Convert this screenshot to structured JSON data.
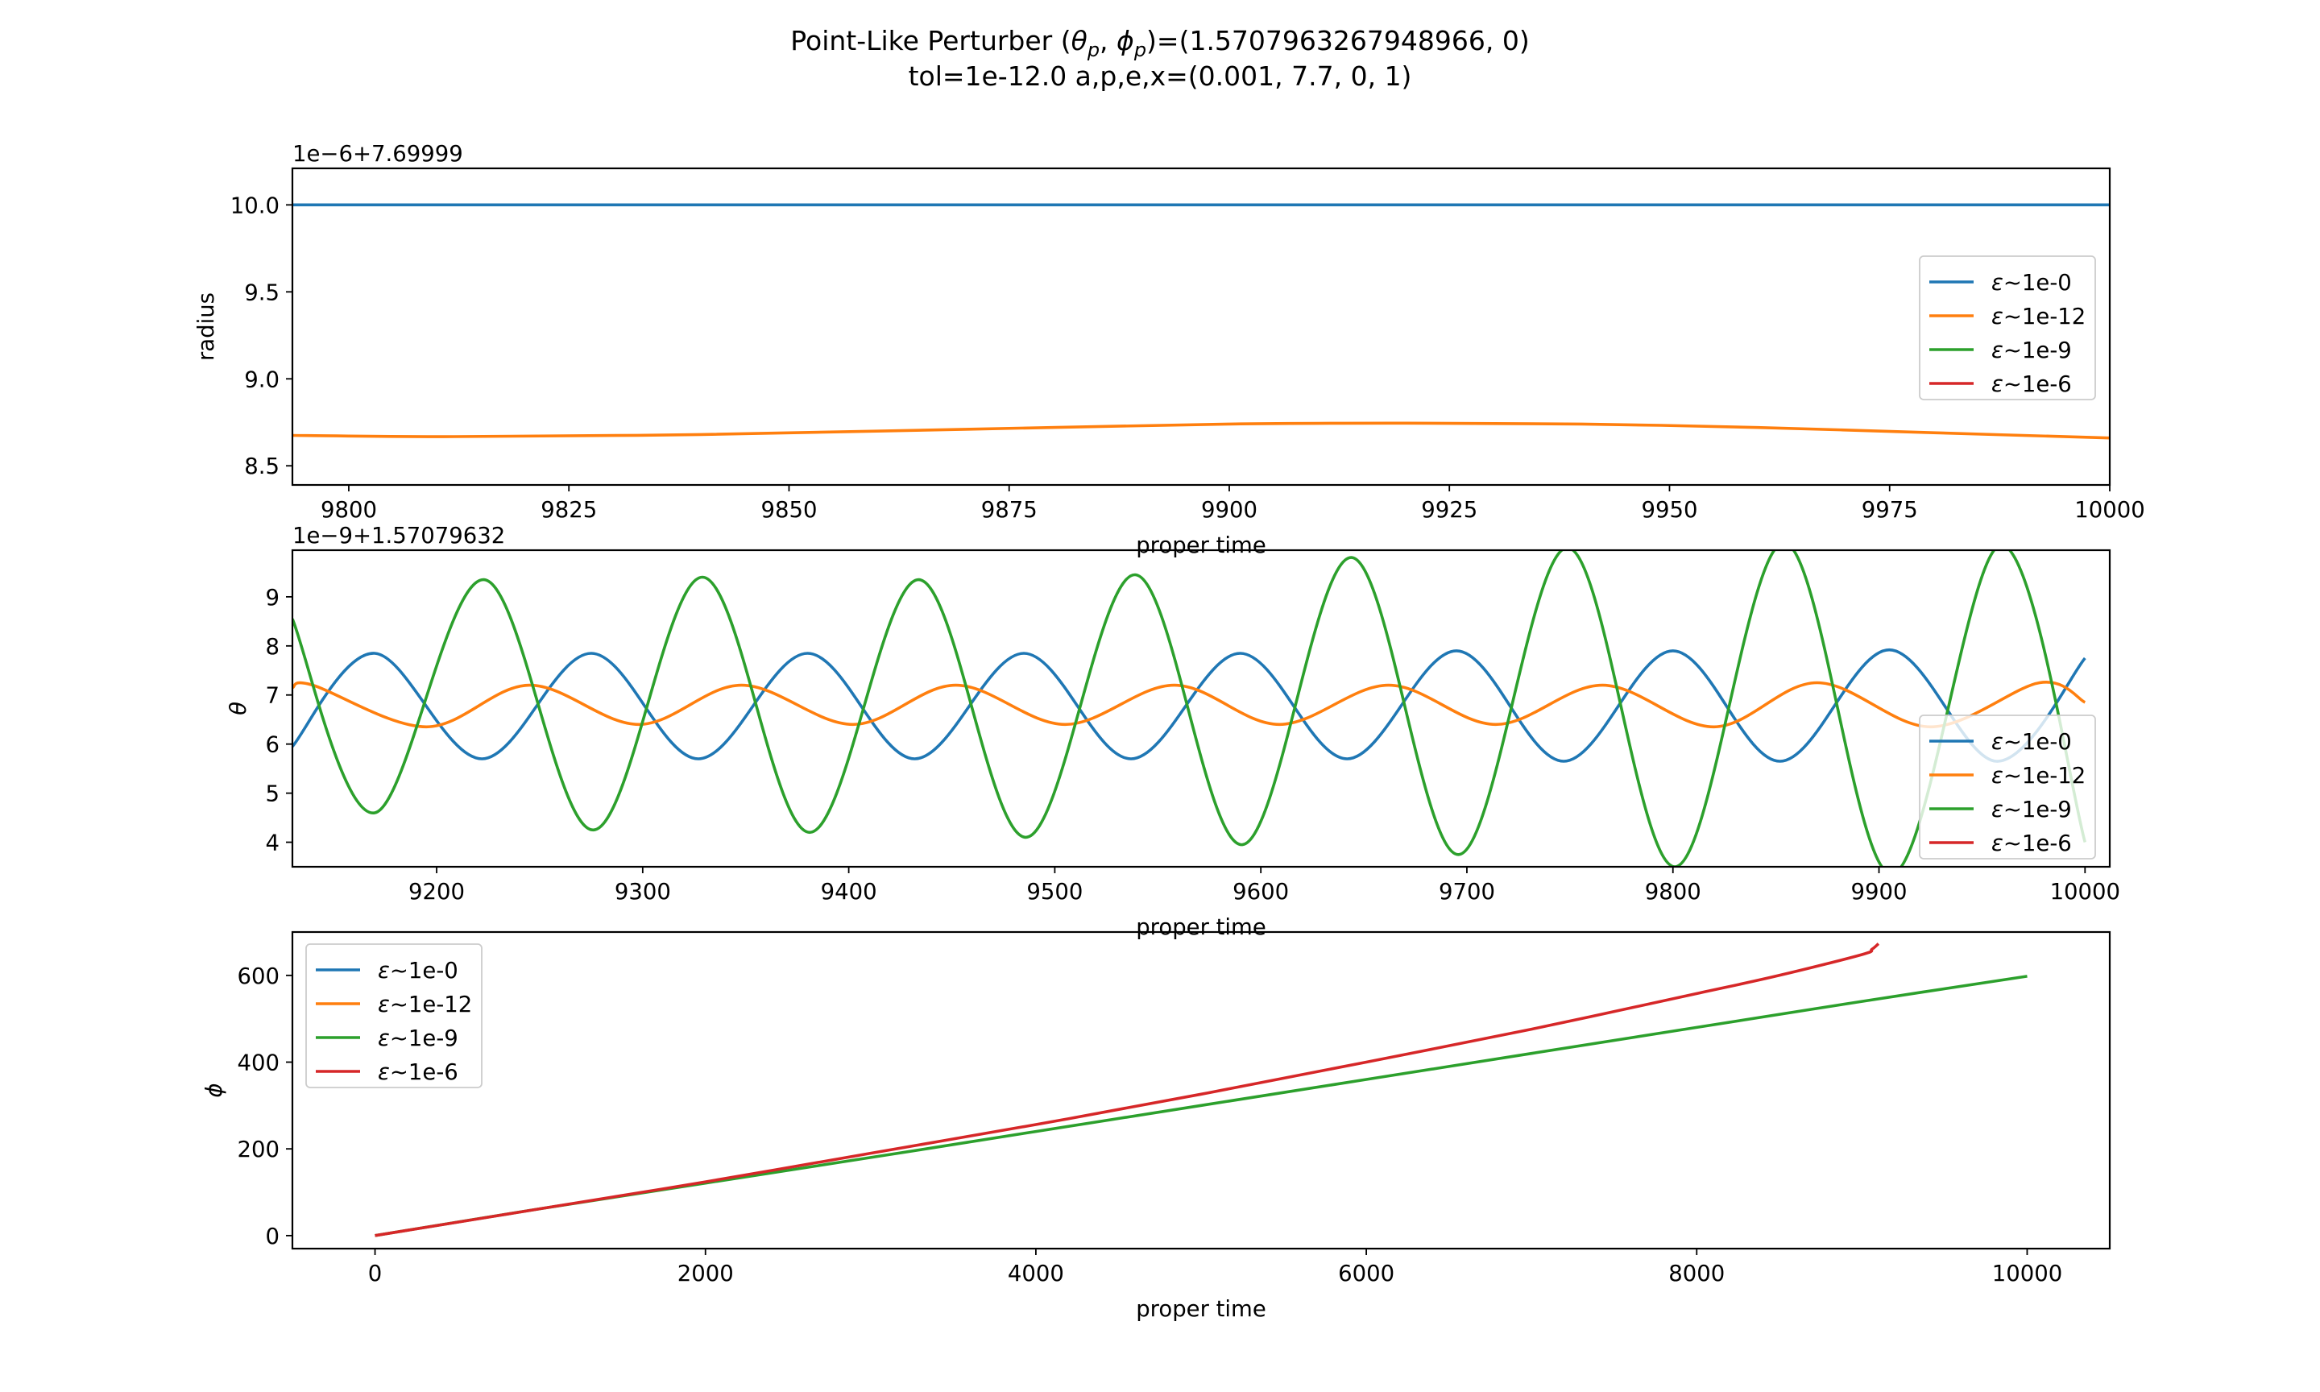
{
  "figure": {
    "title_prefix": "Point-Like Perturber (",
    "title_theta": "θ",
    "title_phi": "ϕ",
    "title_sub": "p",
    "title_sep": ", ",
    "title_suffix": ")=(1.5707963267948966, 0)",
    "title_line2": "tol=1e-12.0 a,p,e,x=(0.001, 7.7, 0, 1)"
  },
  "colors": {
    "c0": "#1f77b4",
    "c1": "#ff7f0e",
    "c2": "#2ca02c",
    "c3": "#d62728"
  },
  "legend": {
    "symbol": "ε",
    "labels": [
      "~1e-0",
      "~1e-12",
      "~1e-9",
      "~1e-6"
    ]
  },
  "chart_data": [
    {
      "type": "line",
      "xlabel": "proper time",
      "ylabel": "radius",
      "offset_text": "1e−6+7.69999",
      "xlim": [
        9793.6,
        10000
      ],
      "ylim": [
        8.39,
        10.21
      ],
      "xticks": [
        "9800",
        "9825",
        "9850",
        "9875",
        "9900",
        "9925",
        "9950",
        "9975",
        "10000"
      ],
      "xtick_values": [
        9800,
        9825,
        9850,
        9875,
        9900,
        9925,
        9950,
        9975,
        10000
      ],
      "yticks": [
        "8.5",
        "9.0",
        "9.5",
        "10.0"
      ],
      "ytick_values": [
        8.5,
        9.0,
        9.5,
        10.0
      ],
      "legend_location": "center right",
      "series": [
        {
          "name": "ε~1e-0",
          "x": [
            9793.6,
            10000
          ],
          "y": [
            10.0,
            10.0
          ]
        },
        {
          "name": "ε~1e-12",
          "x": [
            9793.6,
            9812,
            9840,
            9870,
            9900,
            9920,
            9940,
            9960,
            9980,
            10000
          ],
          "y": [
            8.675,
            8.668,
            8.68,
            8.71,
            8.74,
            8.745,
            8.74,
            8.72,
            8.69,
            8.66
          ]
        },
        {
          "name": "ε~1e-9",
          "x": [],
          "y": []
        },
        {
          "name": "ε~1e-6",
          "x": [],
          "y": []
        }
      ]
    },
    {
      "type": "line",
      "xlabel": "proper time",
      "ylabel": "θ",
      "offset_text": "1e−9+1.57079632",
      "xlim": [
        9130,
        10012
      ],
      "ylim": [
        3.5,
        9.95
      ],
      "xticks": [
        "9200",
        "9300",
        "9400",
        "9500",
        "9600",
        "9700",
        "9800",
        "9900",
        "10000"
      ],
      "xtick_values": [
        9200,
        9300,
        9400,
        9500,
        9600,
        9700,
        9800,
        9900,
        10000
      ],
      "yticks": [
        "4",
        "5",
        "6",
        "7",
        "8",
        "9"
      ],
      "ytick_values": [
        4,
        5,
        6,
        7,
        8,
        9
      ],
      "legend_location": "lower right",
      "series": [
        {
          "name": "ε~1e-0",
          "x": [
            9130,
            9170,
            9222,
            9275,
            9327,
            9380,
            9432,
            9485,
            9537,
            9590,
            9642,
            9695,
            9747,
            9800,
            9852,
            9905,
            9957,
            10000
          ],
          "y": [
            5.95,
            7.85,
            5.7,
            7.85,
            5.7,
            7.85,
            5.7,
            7.85,
            5.7,
            7.85,
            5.7,
            7.9,
            5.65,
            7.9,
            5.65,
            7.92,
            5.65,
            7.75
          ]
        },
        {
          "name": "ε~1e-12",
          "x": [
            9130,
            9140,
            9195,
            9245,
            9298,
            9348,
            9402,
            9452,
            9505,
            9558,
            9609,
            9662,
            9714,
            9766,
            9820,
            9870,
            9925,
            9978,
            10000
          ],
          "y": [
            7.15,
            7.2,
            6.35,
            7.2,
            6.4,
            7.2,
            6.4,
            7.2,
            6.4,
            7.2,
            6.4,
            7.2,
            6.4,
            7.2,
            6.35,
            7.25,
            6.35,
            7.25,
            6.85
          ]
        },
        {
          "name": "ε~1e-9",
          "x": [
            9130,
            9170,
            9223,
            9276,
            9329,
            9381,
            9434,
            9486,
            9539,
            9591,
            9644,
            9696,
            9749,
            9801,
            9854,
            9906,
            9959,
            10000
          ],
          "y": [
            8.55,
            4.6,
            9.35,
            4.25,
            9.4,
            4.2,
            9.35,
            4.1,
            9.45,
            3.95,
            9.8,
            3.75,
            10.0,
            3.5,
            10.1,
            3.35,
            10.05,
            4.0
          ]
        },
        {
          "name": "ε~1e-6",
          "x": [],
          "y": []
        }
      ]
    },
    {
      "type": "line",
      "xlabel": "proper time",
      "ylabel": "ϕ",
      "xlim": [
        -500,
        10500
      ],
      "ylim": [
        -30,
        700
      ],
      "xticks": [
        "0",
        "2000",
        "4000",
        "6000",
        "8000",
        "10000"
      ],
      "xtick_values": [
        0,
        2000,
        4000,
        6000,
        8000,
        10000
      ],
      "yticks": [
        "0",
        "200",
        "400",
        "600"
      ],
      "ytick_values": [
        0,
        200,
        400,
        600
      ],
      "legend_location": "upper left",
      "series": [
        {
          "name": "ε~1e-0",
          "x": [],
          "y": []
        },
        {
          "name": "ε~1e-12",
          "x": [],
          "y": []
        },
        {
          "name": "ε~1e-9",
          "x": [
            0,
            1000,
            2000,
            3000,
            4000,
            5000,
            6000,
            7000,
            8000,
            9000,
            10000
          ],
          "y": [
            0,
            62,
            121,
            180,
            240,
            300,
            360,
            420,
            480,
            540,
            598
          ]
        },
        {
          "name": "ε~1e-6",
          "x": [
            0,
            1000,
            2000,
            3000,
            4000,
            5000,
            6000,
            7000,
            8000,
            8500,
            9000,
            9060,
            9100
          ],
          "y": [
            0,
            62,
            124,
            190,
            256,
            326,
            400,
            476,
            558,
            600,
            648,
            660,
            673
          ]
        }
      ]
    }
  ]
}
